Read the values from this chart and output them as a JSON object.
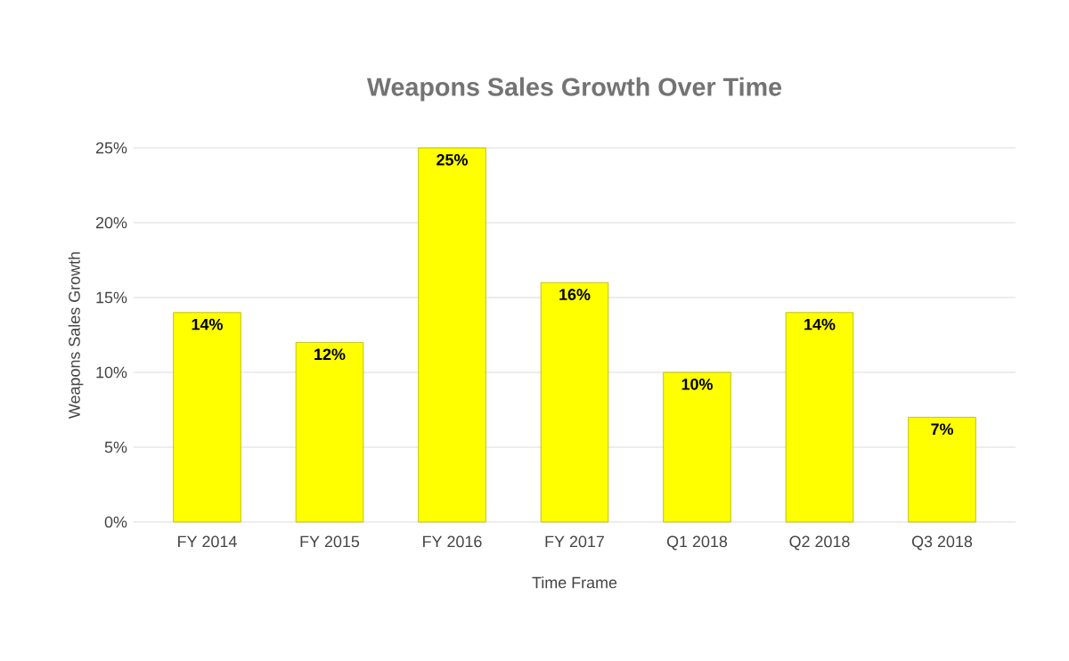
{
  "chart_data": {
    "type": "bar",
    "title": "Weapons Sales Growth Over Time",
    "xlabel": "Time Frame",
    "ylabel": "Weapons Sales Growth",
    "categories": [
      "FY 2014",
      "FY 2015",
      "FY 2016",
      "FY 2017",
      "Q1 2018",
      "Q2 2018",
      "Q3 2018"
    ],
    "values": [
      14,
      12,
      25,
      16,
      10,
      14,
      7
    ],
    "value_labels": [
      "14%",
      "12%",
      "25%",
      "16%",
      "10%",
      "14%",
      "7%"
    ],
    "color": "#ffff00",
    "ylim": [
      0,
      25
    ],
    "yticks": [
      {
        "value": 0,
        "label": "0%"
      },
      {
        "value": 5,
        "label": "5%"
      },
      {
        "value": 10,
        "label": "10%"
      },
      {
        "value": 15,
        "label": "15%"
      },
      {
        "value": 20,
        "label": "20%"
      },
      {
        "value": 25,
        "label": "25%"
      }
    ],
    "grid": "y"
  }
}
